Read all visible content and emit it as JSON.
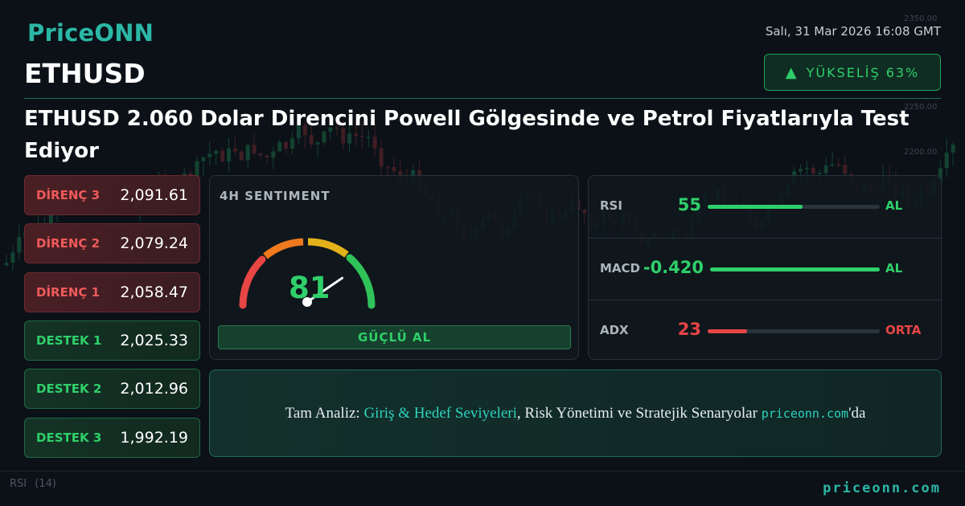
{
  "brand": {
    "logo": "PriceONN",
    "footer_url": "priceonn.com"
  },
  "timestamp": "Salı, 31 Mar 2026 16:08 GMT",
  "symbol": "ETHUSD",
  "trend": {
    "arrow": "▲",
    "label": "YÜKSELİŞ 63%",
    "color": "#2fd06a"
  },
  "headline": "ETHUSD 2.060 Dolar Direncini Powell Gölgesinde ve Petrol Fiyatlarıyla Test Ediyor",
  "levels": [
    {
      "name": "DİRENÇ 3",
      "value": "2,091.61",
      "type": "resistance"
    },
    {
      "name": "DİRENÇ 2",
      "value": "2,079.24",
      "type": "resistance"
    },
    {
      "name": "DİRENÇ 1",
      "value": "2,058.47",
      "type": "resistance"
    },
    {
      "name": "DESTEK 1",
      "value": "2,025.33",
      "type": "support"
    },
    {
      "name": "DESTEK 2",
      "value": "2,012.96",
      "type": "support"
    },
    {
      "name": "DESTEK 3",
      "value": "1,992.19",
      "type": "support"
    }
  ],
  "sentiment": {
    "title": "4H SENTIMENT",
    "value": "81",
    "value_fraction": 0.81,
    "verdict": "GÜÇLÜ AL"
  },
  "indicators": [
    {
      "name": "RSI",
      "value": "55",
      "signal": "AL",
      "level": 0.55,
      "color": "#2fd06a"
    },
    {
      "name": "MACD",
      "value": "-0.420",
      "signal": "AL",
      "level": 1.0,
      "color": "#2fd06a"
    },
    {
      "name": "ADX",
      "value": "23",
      "signal": "ORTA",
      "level": 0.23,
      "color": "#e84545"
    }
  ],
  "cta": {
    "prefix": "Tam Analiz: ",
    "highlight": "Giriş & Hedef Seviyeleri",
    "middle": ", Risk Yönetimi ve Stratejik Senaryolar ",
    "site": "priceonn.com",
    "suffix": "'da"
  },
  "background_chart": {
    "price_labels": [
      "2350.00",
      "2250.00",
      "2200.00"
    ],
    "oscillator_label": "RSI",
    "oscillator_period": "(14)"
  }
}
